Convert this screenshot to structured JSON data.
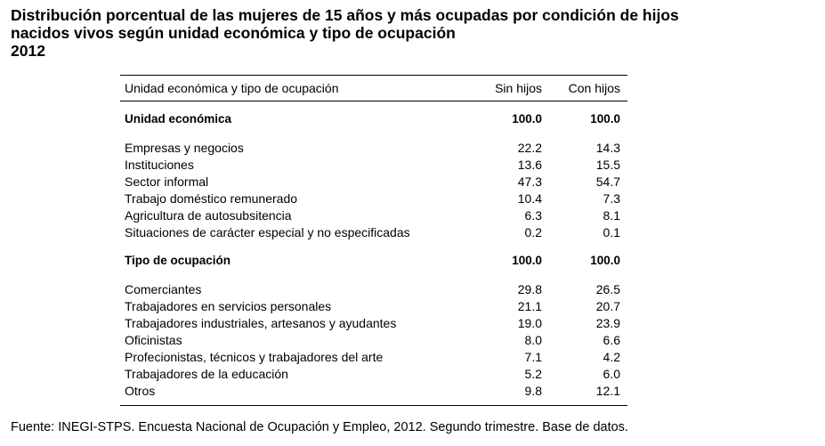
{
  "title": {
    "line1": "Distribución porcentual de las mujeres de 15 años y más ocupadas por condición de hijos",
    "line2": "nacidos vivos según unidad económica y tipo de ocupación",
    "line3": "2012"
  },
  "table": {
    "headers": [
      "Unidad económica y tipo de ocupación",
      "Sin hijos",
      "Con hijos"
    ],
    "section1": {
      "label": "Unidad económica",
      "sin": "100.0",
      "con": "100.0",
      "rows": [
        {
          "label": "Empresas y negocios",
          "sin": "22.2",
          "con": "14.3"
        },
        {
          "label": "Instituciones",
          "sin": "13.6",
          "con": "15.5"
        },
        {
          "label": "Sector informal",
          "sin": "47.3",
          "con": "54.7"
        },
        {
          "label": "Trabajo doméstico remunerado",
          "sin": "10.4",
          "con": "7.3"
        },
        {
          "label": "Agricultura de autosubsitencia",
          "sin": "6.3",
          "con": "8.1"
        },
        {
          "label": "Situaciones de carácter especial y no especificadas",
          "sin": "0.2",
          "con": "0.1"
        }
      ]
    },
    "section2": {
      "label": "Tipo de ocupación",
      "sin": "100.0",
      "con": "100.0",
      "rows": [
        {
          "label": "Comerciantes",
          "sin": "29.8",
          "con": "26.5"
        },
        {
          "label": "Trabajadores en servicios personales",
          "sin": "21.1",
          "con": "20.7"
        },
        {
          "label": "Trabajadores industriales, artesanos y ayudantes",
          "sin": "19.0",
          "con": "23.9"
        },
        {
          "label": "Oficinistas",
          "sin": "8.0",
          "con": "6.6"
        },
        {
          "label": "Profecionistas, técnicos y trabajadores del arte",
          "sin": "7.1",
          "con": "4.2"
        },
        {
          "label": "Trabajadores de la educación",
          "sin": "5.2",
          "con": "6.0"
        },
        {
          "label": "Otros",
          "sin": "9.8",
          "con": "12.1"
        }
      ]
    }
  },
  "source": "Fuente: INEGI-STPS. Encuesta Nacional de Ocupación y Empleo, 2012. Segundo trimestre. Base de datos."
}
